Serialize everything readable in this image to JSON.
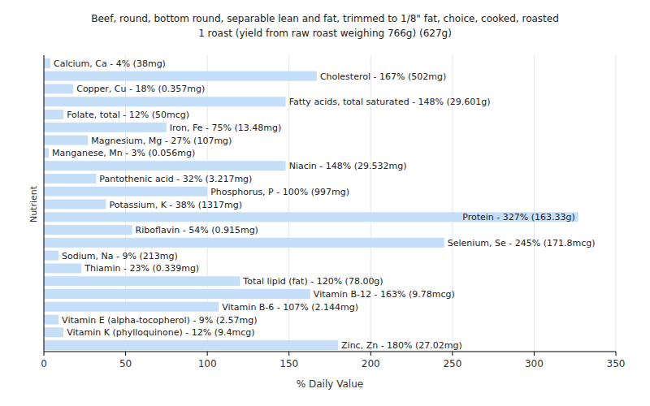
{
  "chart_data": {
    "type": "bar",
    "orientation": "horizontal",
    "title": "Beef, round, bottom round, separable lean and fat, trimmed to 1/8\" fat, choice, cooked, roasted",
    "subtitle": "1 roast (yield from raw roast weighing 766g) (627g)",
    "x_label": "% Daily Value",
    "y_label": "Nutrient",
    "categories": [
      "Calcium, Ca - 4% (38mg)",
      "Cholesterol - 167% (502mg)",
      "Copper, Cu - 18% (0.357mg)",
      "Fatty acids, total saturated - 148% (29.601g)",
      "Folate, total - 12% (50mcg)",
      "Iron, Fe - 75% (13.48mg)",
      "Magnesium, Mg - 27% (107mg)",
      "Manganese, Mn - 3% (0.056mg)",
      "Niacin - 148% (29.532mg)",
      "Pantothenic acid - 32% (3.217mg)",
      "Phosphorus, P - 100% (997mg)",
      "Potassium, K - 38% (1317mg)",
      "Protein - 327% (163.33g)",
      "Riboflavin - 54% (0.915mg)",
      "Selenium, Se - 245% (171.8mcg)",
      "Sodium, Na - 9% (213mg)",
      "Thiamin - 23% (0.339mg)",
      "Total lipid (fat) - 120% (78.00g)",
      "Vitamin B-12 - 163% (9.78mcg)",
      "Vitamin B-6 - 107% (2.144mg)",
      "Vitamin E (alpha-tocopherol) - 9% (2.57mg)",
      "Vitamin K (phylloquinone) - 12% (9.4mcg)",
      "Zinc, Zn - 180% (27.02mg)"
    ],
    "values": [
      4,
      167,
      18,
      148,
      12,
      75,
      27,
      3,
      148,
      32,
      100,
      38,
      327,
      54,
      245,
      9,
      23,
      120,
      163,
      107,
      9,
      12,
      180
    ],
    "color": "#c6dff9",
    "xlim": [
      0,
      350
    ],
    "xticks": [
      0,
      50,
      100,
      150,
      200,
      250,
      300,
      350
    ],
    "grid": true,
    "tick_labels": "x"
  }
}
